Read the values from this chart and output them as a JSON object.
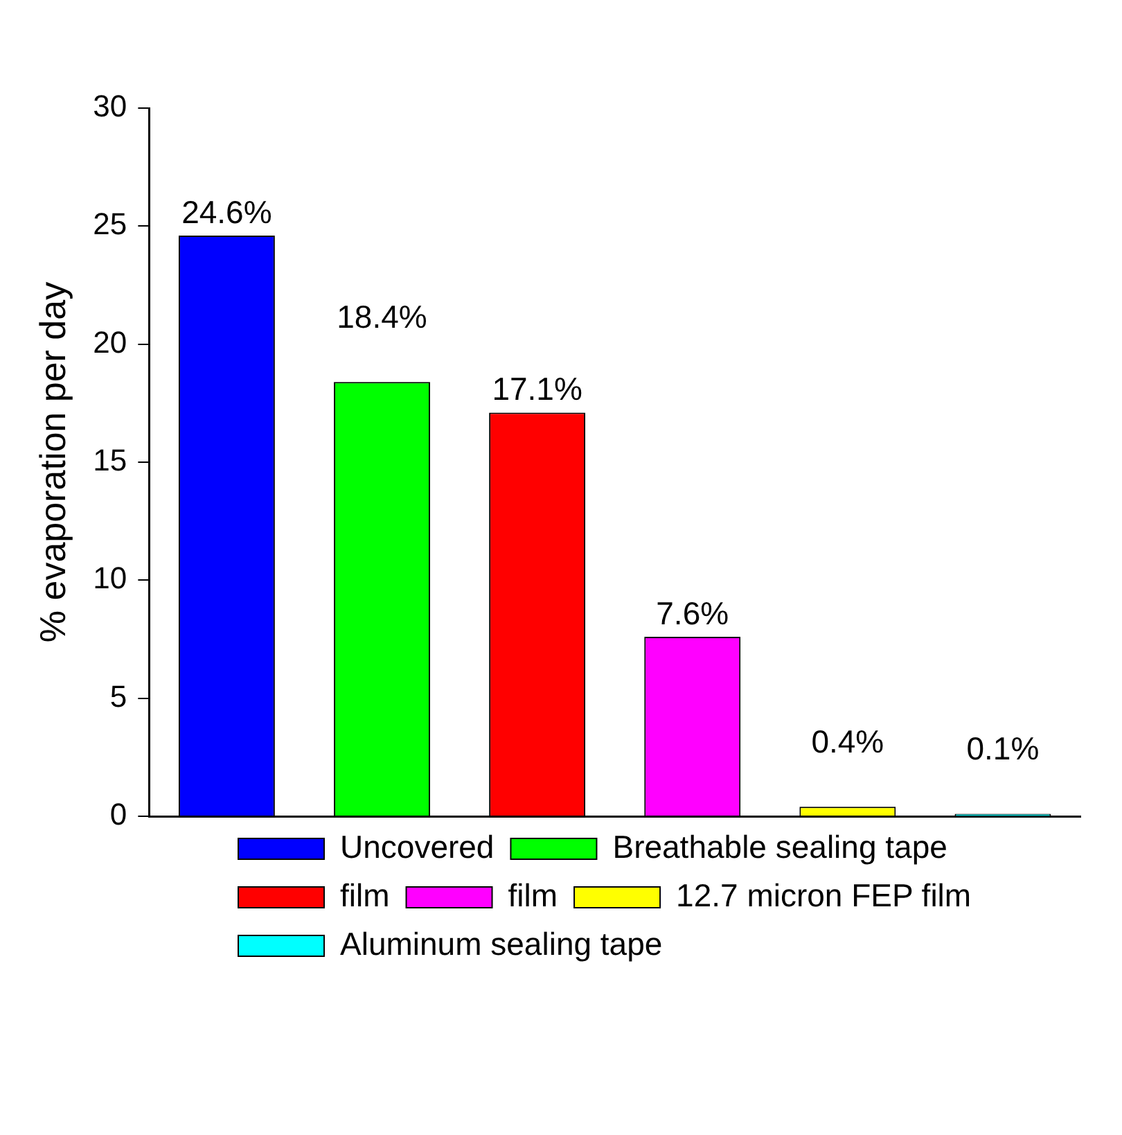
{
  "chart_data": {
    "type": "bar",
    "ylabel": "% evaporation per day",
    "categories": [
      null,
      null,
      null,
      null,
      null,
      null
    ],
    "series": [
      {
        "name": "Uncovered",
        "color": "#0000ff",
        "values": [
          24.6,
          null,
          null,
          null,
          null,
          null
        ],
        "value_labels": [
          "24.6%",
          null,
          null,
          null,
          null,
          null
        ]
      },
      {
        "name": "Breathable sealing tape",
        "color": "#00ff00",
        "values": [
          null,
          18.4,
          null,
          null,
          null,
          null
        ],
        "value_labels": [
          null,
          "18.4%",
          null,
          null,
          null,
          null
        ]
      },
      {
        "name": "film",
        "color": "#ff0000",
        "values": [
          null,
          null,
          17.1,
          null,
          null,
          null
        ],
        "value_labels": [
          null,
          null,
          "17.1%",
          null,
          null,
          null
        ]
      },
      {
        "name": "film",
        "color": "#ff00ff",
        "values": [
          null,
          null,
          null,
          7.6,
          null,
          null
        ],
        "value_labels": [
          null,
          null,
          null,
          "7.6%",
          null,
          null
        ]
      },
      {
        "name": "12.7 micron FEP film",
        "color": "#ffff00",
        "values": [
          null,
          null,
          null,
          null,
          0.4,
          null
        ],
        "value_labels": [
          null,
          null,
          null,
          null,
          "0.4%",
          null
        ]
      },
      {
        "name": "Aluminum sealing tape",
        "color": "#00ffff",
        "values": [
          null,
          null,
          null,
          null,
          null,
          0.1
        ],
        "value_labels": [
          null,
          null,
          null,
          null,
          null,
          "0.1%"
        ]
      }
    ],
    "ylim": [
      0,
      30
    ],
    "yticks": [
      0,
      5,
      10,
      15,
      20,
      25,
      30
    ],
    "grid": false,
    "legend": "bottom",
    "tick_labels": "y"
  }
}
